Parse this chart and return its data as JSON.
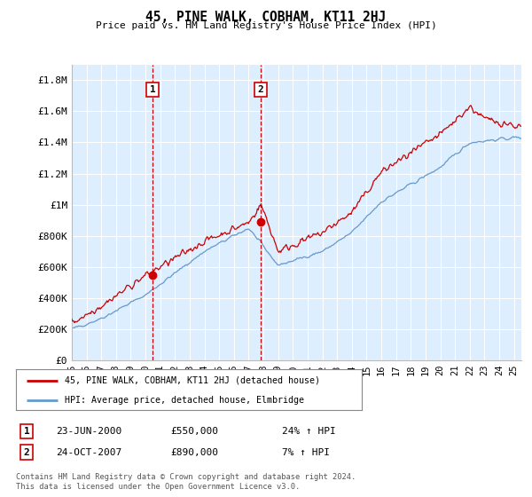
{
  "title": "45, PINE WALK, COBHAM, KT11 2HJ",
  "subtitle": "Price paid vs. HM Land Registry's House Price Index (HPI)",
  "ylabel_ticks": [
    "£0",
    "£200K",
    "£400K",
    "£600K",
    "£800K",
    "£1M",
    "£1.2M",
    "£1.4M",
    "£1.6M",
    "£1.8M"
  ],
  "ytick_vals": [
    0,
    200000,
    400000,
    600000,
    800000,
    1000000,
    1200000,
    1400000,
    1600000,
    1800000
  ],
  "ylim": [
    0,
    1900000
  ],
  "xlim_start": 1995.0,
  "xlim_end": 2025.5,
  "sale1_x": 2000.47,
  "sale1_y": 550000,
  "sale2_x": 2007.81,
  "sale2_y": 890000,
  "sale1_date": "23-JUN-2000",
  "sale1_price": "£550,000",
  "sale1_hpi": "24% ↑ HPI",
  "sale2_date": "24-OCT-2007",
  "sale2_price": "£890,000",
  "sale2_hpi": "7% ↑ HPI",
  "line_red": "#cc0000",
  "line_blue": "#6699cc",
  "shade_color": "#ddeeff",
  "background_plot": "#ddeeff",
  "background_fig": "#ffffff",
  "grid_color": "#ffffff",
  "dashed_color": "#cc0000",
  "legend_line1": "45, PINE WALK, COBHAM, KT11 2HJ (detached house)",
  "legend_line2": "HPI: Average price, detached house, Elmbridge",
  "footer": "Contains HM Land Registry data © Crown copyright and database right 2024.\nThis data is licensed under the Open Government Licence v3.0.",
  "xtick_years": [
    1995,
    1996,
    1997,
    1998,
    1999,
    2000,
    2001,
    2002,
    2003,
    2004,
    2005,
    2006,
    2007,
    2008,
    2009,
    2010,
    2011,
    2012,
    2013,
    2014,
    2015,
    2016,
    2017,
    2018,
    2019,
    2020,
    2021,
    2022,
    2023,
    2024,
    2025
  ],
  "xtick_labels": [
    "95",
    "96",
    "97",
    "98",
    "99",
    "00",
    "01",
    "02",
    "03",
    "04",
    "05",
    "06",
    "07",
    "08",
    "09",
    "10",
    "11",
    "12",
    "13",
    "14",
    "15",
    "16",
    "17",
    "18",
    "19",
    "20",
    "21",
    "22",
    "23",
    "24",
    "25"
  ]
}
